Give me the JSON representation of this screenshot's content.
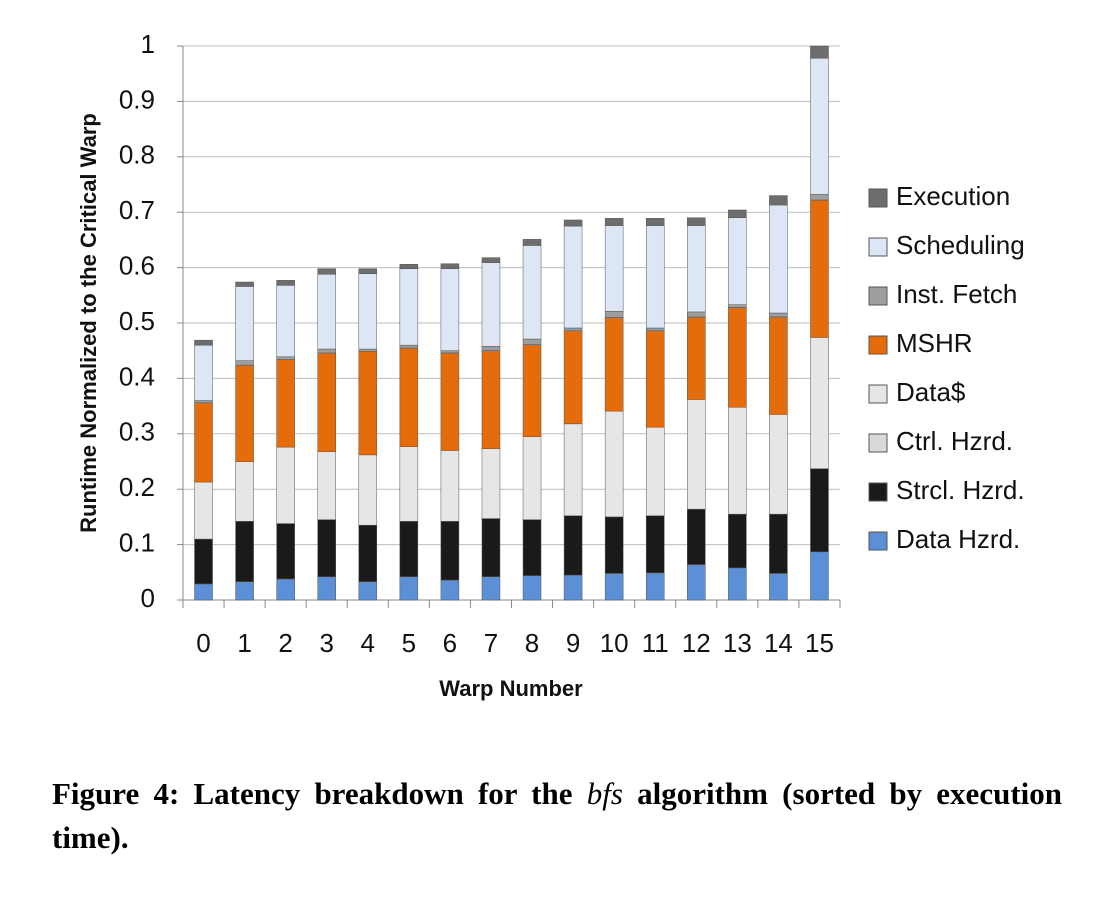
{
  "chart_data": {
    "type": "stacked-bar",
    "x_label": "Warp Number",
    "y_label": "Runtime Normalized to the Critical Warp",
    "categories": [
      "0",
      "1",
      "2",
      "3",
      "4",
      "5",
      "6",
      "7",
      "8",
      "9",
      "10",
      "11",
      "12",
      "13",
      "14",
      "15"
    ],
    "ylim": [
      0,
      1
    ],
    "yticks": [
      0,
      0.1,
      0.2,
      0.3,
      0.4,
      0.5,
      0.6,
      0.7,
      0.8,
      0.9,
      1
    ],
    "grid": true,
    "legend": "right",
    "series": [
      {
        "name": "Data Hzrd.",
        "color": "#5b8fd6",
        "values": [
          0.029,
          0.033,
          0.038,
          0.042,
          0.033,
          0.042,
          0.036,
          0.042,
          0.044,
          0.045,
          0.048,
          0.049,
          0.064,
          0.058,
          0.048,
          0.087
        ]
      },
      {
        "name": "Strcl. Hzrd.",
        "color": "#1a1a1a",
        "values": [
          0.081,
          0.109,
          0.1,
          0.103,
          0.102,
          0.1,
          0.106,
          0.105,
          0.101,
          0.107,
          0.102,
          0.103,
          0.1,
          0.097,
          0.107,
          0.15
        ]
      },
      {
        "name": "Ctrl. Hzrd.",
        "color": "#d9d9d9",
        "values": [
          0,
          0,
          0,
          0,
          0,
          0,
          0,
          0,
          0,
          0,
          0,
          0,
          0,
          0,
          0,
          0
        ]
      },
      {
        "name": "Data$",
        "color": "#e6e6e6",
        "values": [
          0.103,
          0.108,
          0.138,
          0.123,
          0.127,
          0.135,
          0.128,
          0.126,
          0.15,
          0.166,
          0.191,
          0.16,
          0.198,
          0.193,
          0.18,
          0.237
        ]
      },
      {
        "name": "MSHR",
        "color": "#e46c0a",
        "values": [
          0.143,
          0.174,
          0.158,
          0.178,
          0.187,
          0.178,
          0.176,
          0.177,
          0.166,
          0.168,
          0.169,
          0.174,
          0.149,
          0.18,
          0.176,
          0.248
        ]
      },
      {
        "name": "Inst. Fetch",
        "color": "#9e9e9e",
        "values": [
          0.004,
          0.008,
          0.005,
          0.007,
          0.004,
          0.005,
          0.004,
          0.008,
          0.01,
          0.005,
          0.011,
          0.005,
          0.009,
          0.005,
          0.007,
          0.01
        ]
      },
      {
        "name": "Scheduling",
        "color": "#dce6f5",
        "values": [
          0.1,
          0.134,
          0.129,
          0.135,
          0.136,
          0.138,
          0.148,
          0.151,
          0.169,
          0.184,
          0.155,
          0.185,
          0.156,
          0.157,
          0.195,
          0.246
        ]
      },
      {
        "name": "Execution",
        "color": "#6d6d6d",
        "values": [
          0.009,
          0.008,
          0.009,
          0.01,
          0.009,
          0.008,
          0.009,
          0.009,
          0.011,
          0.011,
          0.013,
          0.013,
          0.014,
          0.014,
          0.017,
          0.022
        ]
      }
    ]
  },
  "caption": [
    "Figure 4: Latency breakdown for the",
    "bfs",
    "algorithm (sorted by execution time)."
  ]
}
